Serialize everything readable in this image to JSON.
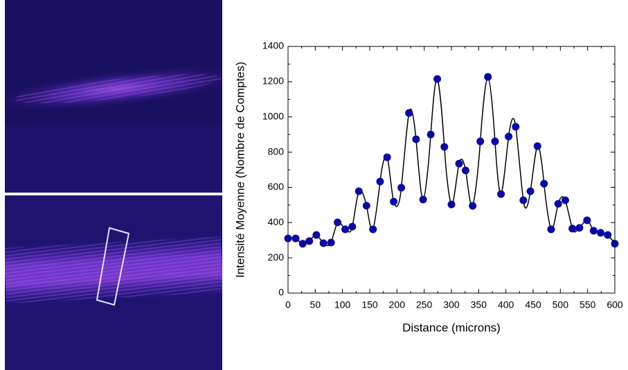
{
  "chart_data": {
    "type": "scatter",
    "xlabel": "Distance (microns)",
    "ylabel": "Intensité Moyenne (Nombre de Comptes)",
    "xlim": [
      0,
      600
    ],
    "xticks": [
      0,
      50,
      100,
      150,
      200,
      250,
      300,
      350,
      400,
      450,
      500,
      550,
      600
    ],
    "ylim": [
      0,
      1400
    ],
    "yticks": [
      0,
      200,
      400,
      600,
      800,
      1000,
      1200,
      1400
    ],
    "line": "smooth",
    "series": [
      {
        "color": "#0a0aa0",
        "line_color": "#000000",
        "x": [
          0,
          14,
          27,
          39,
          52,
          65,
          79,
          91,
          105,
          118,
          130,
          144,
          156,
          169,
          182,
          194,
          208,
          222,
          235,
          248,
          262,
          274,
          287,
          300,
          314,
          326,
          339,
          353,
          367,
          380,
          391,
          405,
          418,
          432,
          445,
          458,
          470,
          483,
          496,
          509,
          522,
          535,
          549,
          561,
          574,
          587,
          600
        ],
        "values": [
          310,
          310,
          280,
          295,
          330,
          283,
          287,
          401,
          362,
          377,
          578,
          496,
          362,
          633,
          771,
          519,
          598,
          1022,
          873,
          531,
          900,
          1215,
          830,
          503,
          735,
          696,
          495,
          861,
          1227,
          861,
          562,
          889,
          944,
          527,
          578,
          834,
          621,
          362,
          507,
          527,
          366,
          370,
          413,
          354,
          342,
          330,
          280
        ]
      }
    ]
  }
}
